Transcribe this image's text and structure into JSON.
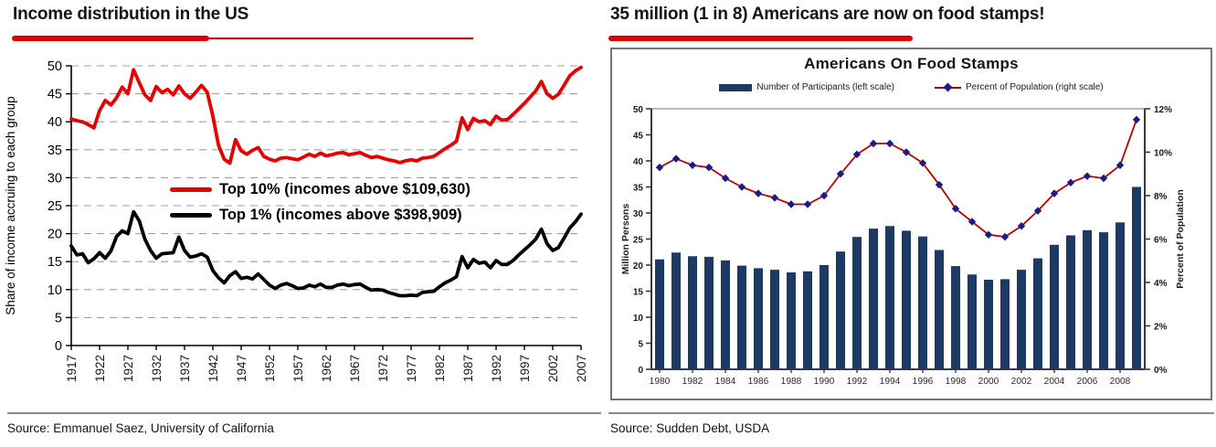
{
  "accent_red": "#dd0000",
  "left": {
    "title": "Income distribution in the US",
    "source": "Source: Emmanuel Saez, University of California"
  },
  "right": {
    "title": "35 million (1 in 8) Americans are now on food stamps!",
    "source": "Source: Sudden Debt, USDA"
  },
  "chart_data": [
    {
      "type": "line",
      "ylabel": "Share of income accruing to each group",
      "ylim": [
        0,
        50
      ],
      "y_ticks": [
        0,
        5,
        10,
        15,
        20,
        25,
        30,
        35,
        40,
        45,
        50
      ],
      "grid": "dashed-horizontal",
      "x_start": 1917,
      "x_end": 2007,
      "x_tick_labels": [
        "1917",
        "1922",
        "1927",
        "1932",
        "1937",
        "1942",
        "1947",
        "1952",
        "1957",
        "1962",
        "1967",
        "1972",
        "1977",
        "1982",
        "1987",
        "1992",
        "1997",
        "2002",
        "2007"
      ],
      "legend_position": "inside-middle-left",
      "series": [
        {
          "name": "Top 10% (incomes above $109,630)",
          "color": "#e60000",
          "values": [
            40.5,
            40.2,
            40.0,
            39.5,
            38.9,
            42.0,
            43.8,
            43.0,
            44.3,
            46.2,
            45.0,
            49.3,
            47.0,
            44.8,
            43.8,
            46.3,
            45.2,
            45.8,
            44.8,
            46.4,
            45.0,
            44.2,
            45.3,
            46.5,
            45.3,
            41.0,
            35.8,
            33.3,
            32.6,
            36.8,
            34.8,
            34.2,
            34.9,
            35.4,
            33.8,
            33.3,
            33.0,
            33.5,
            33.6,
            33.4,
            33.2,
            33.7,
            34.2,
            33.8,
            34.4,
            33.9,
            34.1,
            34.4,
            34.5,
            34.1,
            34.3,
            34.5,
            34.0,
            33.6,
            33.8,
            33.5,
            33.2,
            33.0,
            32.7,
            33.0,
            33.2,
            33.0,
            33.5,
            33.6,
            33.8,
            34.5,
            35.2,
            35.8,
            36.5,
            40.7,
            38.6,
            40.6,
            40.0,
            40.2,
            39.5,
            41.0,
            40.3,
            40.4,
            41.3,
            42.3,
            43.3,
            44.4,
            45.5,
            47.2,
            45.0,
            44.2,
            44.9,
            46.5,
            48.2,
            49.1,
            49.7
          ]
        },
        {
          "name": "Top 1% (incomes above $398,909)",
          "color": "#000000",
          "values": [
            17.8,
            16.2,
            16.4,
            14.8,
            15.5,
            16.6,
            15.6,
            16.9,
            19.5,
            20.5,
            20.0,
            23.9,
            22.3,
            19.0,
            17.0,
            15.6,
            16.4,
            16.5,
            16.6,
            19.4,
            17.0,
            15.8,
            16.0,
            16.4,
            15.8,
            13.4,
            12.1,
            11.2,
            12.5,
            13.2,
            12.0,
            12.2,
            11.9,
            12.8,
            11.8,
            10.8,
            10.2,
            10.8,
            11.1,
            10.7,
            10.2,
            10.3,
            10.8,
            10.5,
            11.0,
            10.4,
            10.4,
            10.8,
            11.0,
            10.7,
            10.9,
            11.0,
            10.4,
            9.9,
            10.0,
            9.9,
            9.5,
            9.2,
            8.9,
            8.9,
            9.0,
            8.9,
            9.5,
            9.6,
            9.7,
            10.5,
            11.2,
            11.7,
            12.3,
            15.9,
            13.9,
            15.4,
            14.7,
            14.9,
            13.9,
            15.2,
            14.5,
            14.5,
            15.2,
            16.2,
            17.1,
            18.0,
            19.0,
            20.8,
            18.2,
            17.0,
            17.5,
            19.2,
            21.0,
            22.1,
            23.5
          ]
        }
      ]
    },
    {
      "type": "bar+line",
      "title": "Americans On Food Stamps",
      "ylabel_left": "Million Persons",
      "ylabel_right": "Percent of Population",
      "ylim_left": [
        0,
        50
      ],
      "ylim_right_pct": [
        0,
        12
      ],
      "y_ticks_left": [
        0,
        5,
        10,
        15,
        20,
        25,
        30,
        35,
        40,
        45,
        50
      ],
      "y_ticks_right_pct": [
        0,
        2,
        4,
        6,
        8,
        10,
        12
      ],
      "grid": "off",
      "x_start": 1980,
      "x_end": 2009,
      "x_tick_labels": [
        "1980",
        "1982",
        "1984",
        "1986",
        "1988",
        "1990",
        "1992",
        "1994",
        "1996",
        "1998",
        "2000",
        "2002",
        "2004",
        "2006",
        "2008"
      ],
      "legend_position": "top-center",
      "series": [
        {
          "name": "Number of Participants (left scale)",
          "type": "bar",
          "axis": "left",
          "color": "#1c3a64",
          "values": [
            21.1,
            22.4,
            21.7,
            21.6,
            20.9,
            19.9,
            19.4,
            19.1,
            18.6,
            18.8,
            20.0,
            22.6,
            25.4,
            27.0,
            27.5,
            26.6,
            25.5,
            22.9,
            19.8,
            18.2,
            17.2,
            17.3,
            19.1,
            21.3,
            23.9,
            25.7,
            26.7,
            26.3,
            28.2,
            35.0
          ]
        },
        {
          "name": "Percent of Population (right scale)",
          "type": "line",
          "axis": "right",
          "color": "#bf0000",
          "marker": "diamond",
          "marker_color": "#1a1a8c",
          "values": [
            9.3,
            9.7,
            9.4,
            9.3,
            8.8,
            8.4,
            8.1,
            7.9,
            7.6,
            7.6,
            8.0,
            9.0,
            9.9,
            10.4,
            10.4,
            10.0,
            9.5,
            8.5,
            7.4,
            6.8,
            6.2,
            6.1,
            6.6,
            7.3,
            8.1,
            8.6,
            8.9,
            8.8,
            9.4,
            11.5
          ]
        }
      ]
    }
  ]
}
